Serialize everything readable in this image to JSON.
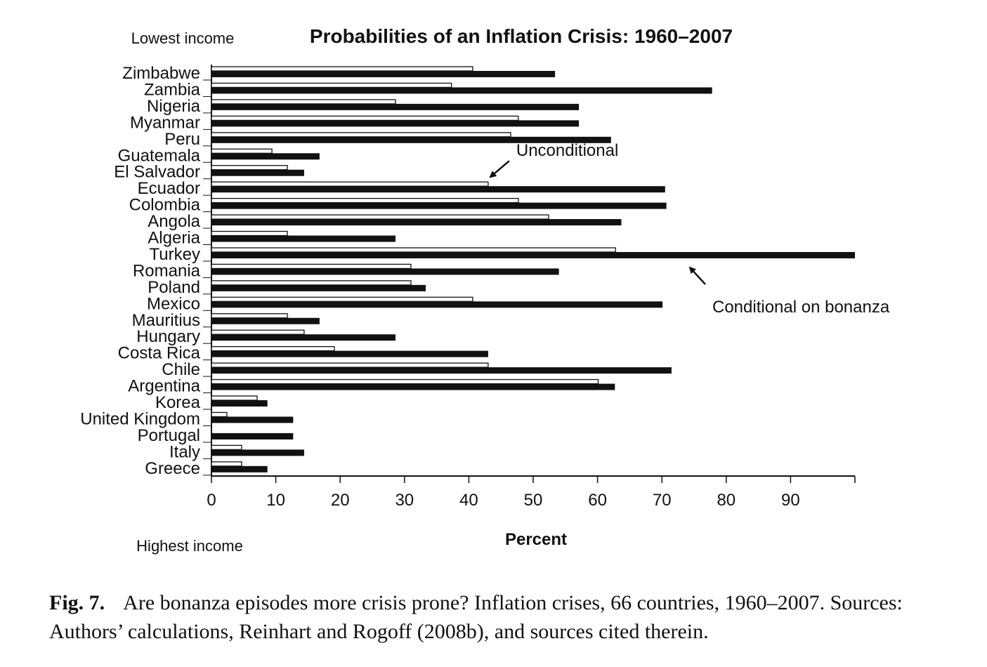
{
  "chart_data": {
    "type": "bar",
    "orientation": "horizontal",
    "title": "Probabilities of an Inflation Crisis: 1960–2007",
    "xlabel": "Percent",
    "top_note": "Lowest income",
    "bottom_note": "Highest income",
    "xlim": [
      0,
      100
    ],
    "x_ticks": [
      "0",
      "10",
      "20",
      "30",
      "40",
      "50",
      "60",
      "70",
      "80",
      "90",
      ""
    ],
    "grid": false,
    "categories": [
      "Zimbabwe",
      "Zambia",
      "Nigeria",
      "Myanmar",
      "Peru",
      "Guatemala",
      "El Salvador",
      "Ecuador",
      "Colombia",
      "Angola",
      "Algeria",
      "Turkey",
      "Romania",
      "Poland",
      "Mexico",
      "Mauritius",
      "Hungary",
      "Costa Rica",
      "Chile",
      "Argentina",
      "Korea",
      "United Kingdom",
      "Portugal",
      "Italy",
      "Greece"
    ],
    "series": [
      {
        "name": "Unconditional",
        "color": "#ffffff",
        "values": [
          40.6,
          37.3,
          28.6,
          47.7,
          46.5,
          9.4,
          11.8,
          43.0,
          47.7,
          52.4,
          11.8,
          62.8,
          31.0,
          31.0,
          40.6,
          11.8,
          14.4,
          19.1,
          43.0,
          60.1,
          7.1,
          2.4,
          0,
          4.7,
          4.7
        ]
      },
      {
        "name": "Conditional on bonanza",
        "color": "#111111",
        "values": [
          53.4,
          77.8,
          57.1,
          57.1,
          62.1,
          16.8,
          14.4,
          70.5,
          70.7,
          63.7,
          28.6,
          100,
          54.0,
          33.3,
          70.1,
          16.8,
          28.6,
          43.0,
          71.5,
          62.7,
          8.7,
          12.7,
          12.7,
          14.4,
          8.7
        ]
      }
    ],
    "annotations": [
      {
        "text": "Unconditional",
        "series": "Unconditional",
        "category": "Ecuador"
      },
      {
        "text": "Conditional on bonanza",
        "series": "Conditional on bonanza",
        "category": "Turkey"
      }
    ]
  },
  "caption": {
    "label": "Fig. 7.",
    "text": "Are bonanza episodes more crisis prone? Inflation crises, 66 countries, 1960–2007. Sources: Authors’ calculations, Reinhart and Rogoff (2008b), and sources cited therein."
  }
}
